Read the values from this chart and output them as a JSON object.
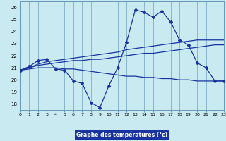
{
  "xlabel": "Graphe des températures (°c)",
  "background_color": "#c8eaf0",
  "grid_color": "#6699bb",
  "line_color": "#1833a0",
  "xlim": [
    0,
    23
  ],
  "ylim": [
    17.5,
    26.5
  ],
  "yticks": [
    18,
    19,
    20,
    21,
    22,
    23,
    24,
    25,
    26
  ],
  "xticks": [
    0,
    1,
    2,
    3,
    4,
    5,
    6,
    7,
    8,
    9,
    10,
    11,
    12,
    13,
    14,
    15,
    16,
    17,
    18,
    19,
    20,
    21,
    22,
    23
  ],
  "series_main": [
    20.8,
    21.1,
    21.6,
    21.7,
    20.9,
    20.8,
    19.9,
    19.7,
    18.1,
    17.7,
    19.5,
    21.0,
    23.1,
    25.8,
    25.6,
    25.2,
    25.7,
    24.8,
    23.3,
    22.9,
    21.4,
    21.0,
    19.9,
    19.9
  ],
  "series_upper": [
    20.8,
    21.0,
    21.3,
    21.5,
    21.6,
    21.7,
    21.8,
    21.9,
    22.0,
    22.1,
    22.2,
    22.3,
    22.5,
    22.6,
    22.7,
    22.8,
    22.9,
    23.0,
    23.1,
    23.2,
    23.3,
    23.3,
    23.3,
    23.3
  ],
  "series_mid_upper": [
    20.8,
    21.0,
    21.2,
    21.3,
    21.4,
    21.5,
    21.6,
    21.6,
    21.7,
    21.7,
    21.8,
    21.9,
    22.0,
    22.1,
    22.2,
    22.2,
    22.3,
    22.4,
    22.5,
    22.6,
    22.7,
    22.8,
    22.9,
    22.9
  ],
  "series_lower": [
    20.8,
    20.9,
    21.0,
    21.0,
    21.0,
    20.9,
    20.9,
    20.8,
    20.7,
    20.6,
    20.5,
    20.4,
    20.3,
    20.3,
    20.2,
    20.2,
    20.1,
    20.1,
    20.0,
    20.0,
    19.9,
    19.9,
    19.9,
    19.9
  ]
}
